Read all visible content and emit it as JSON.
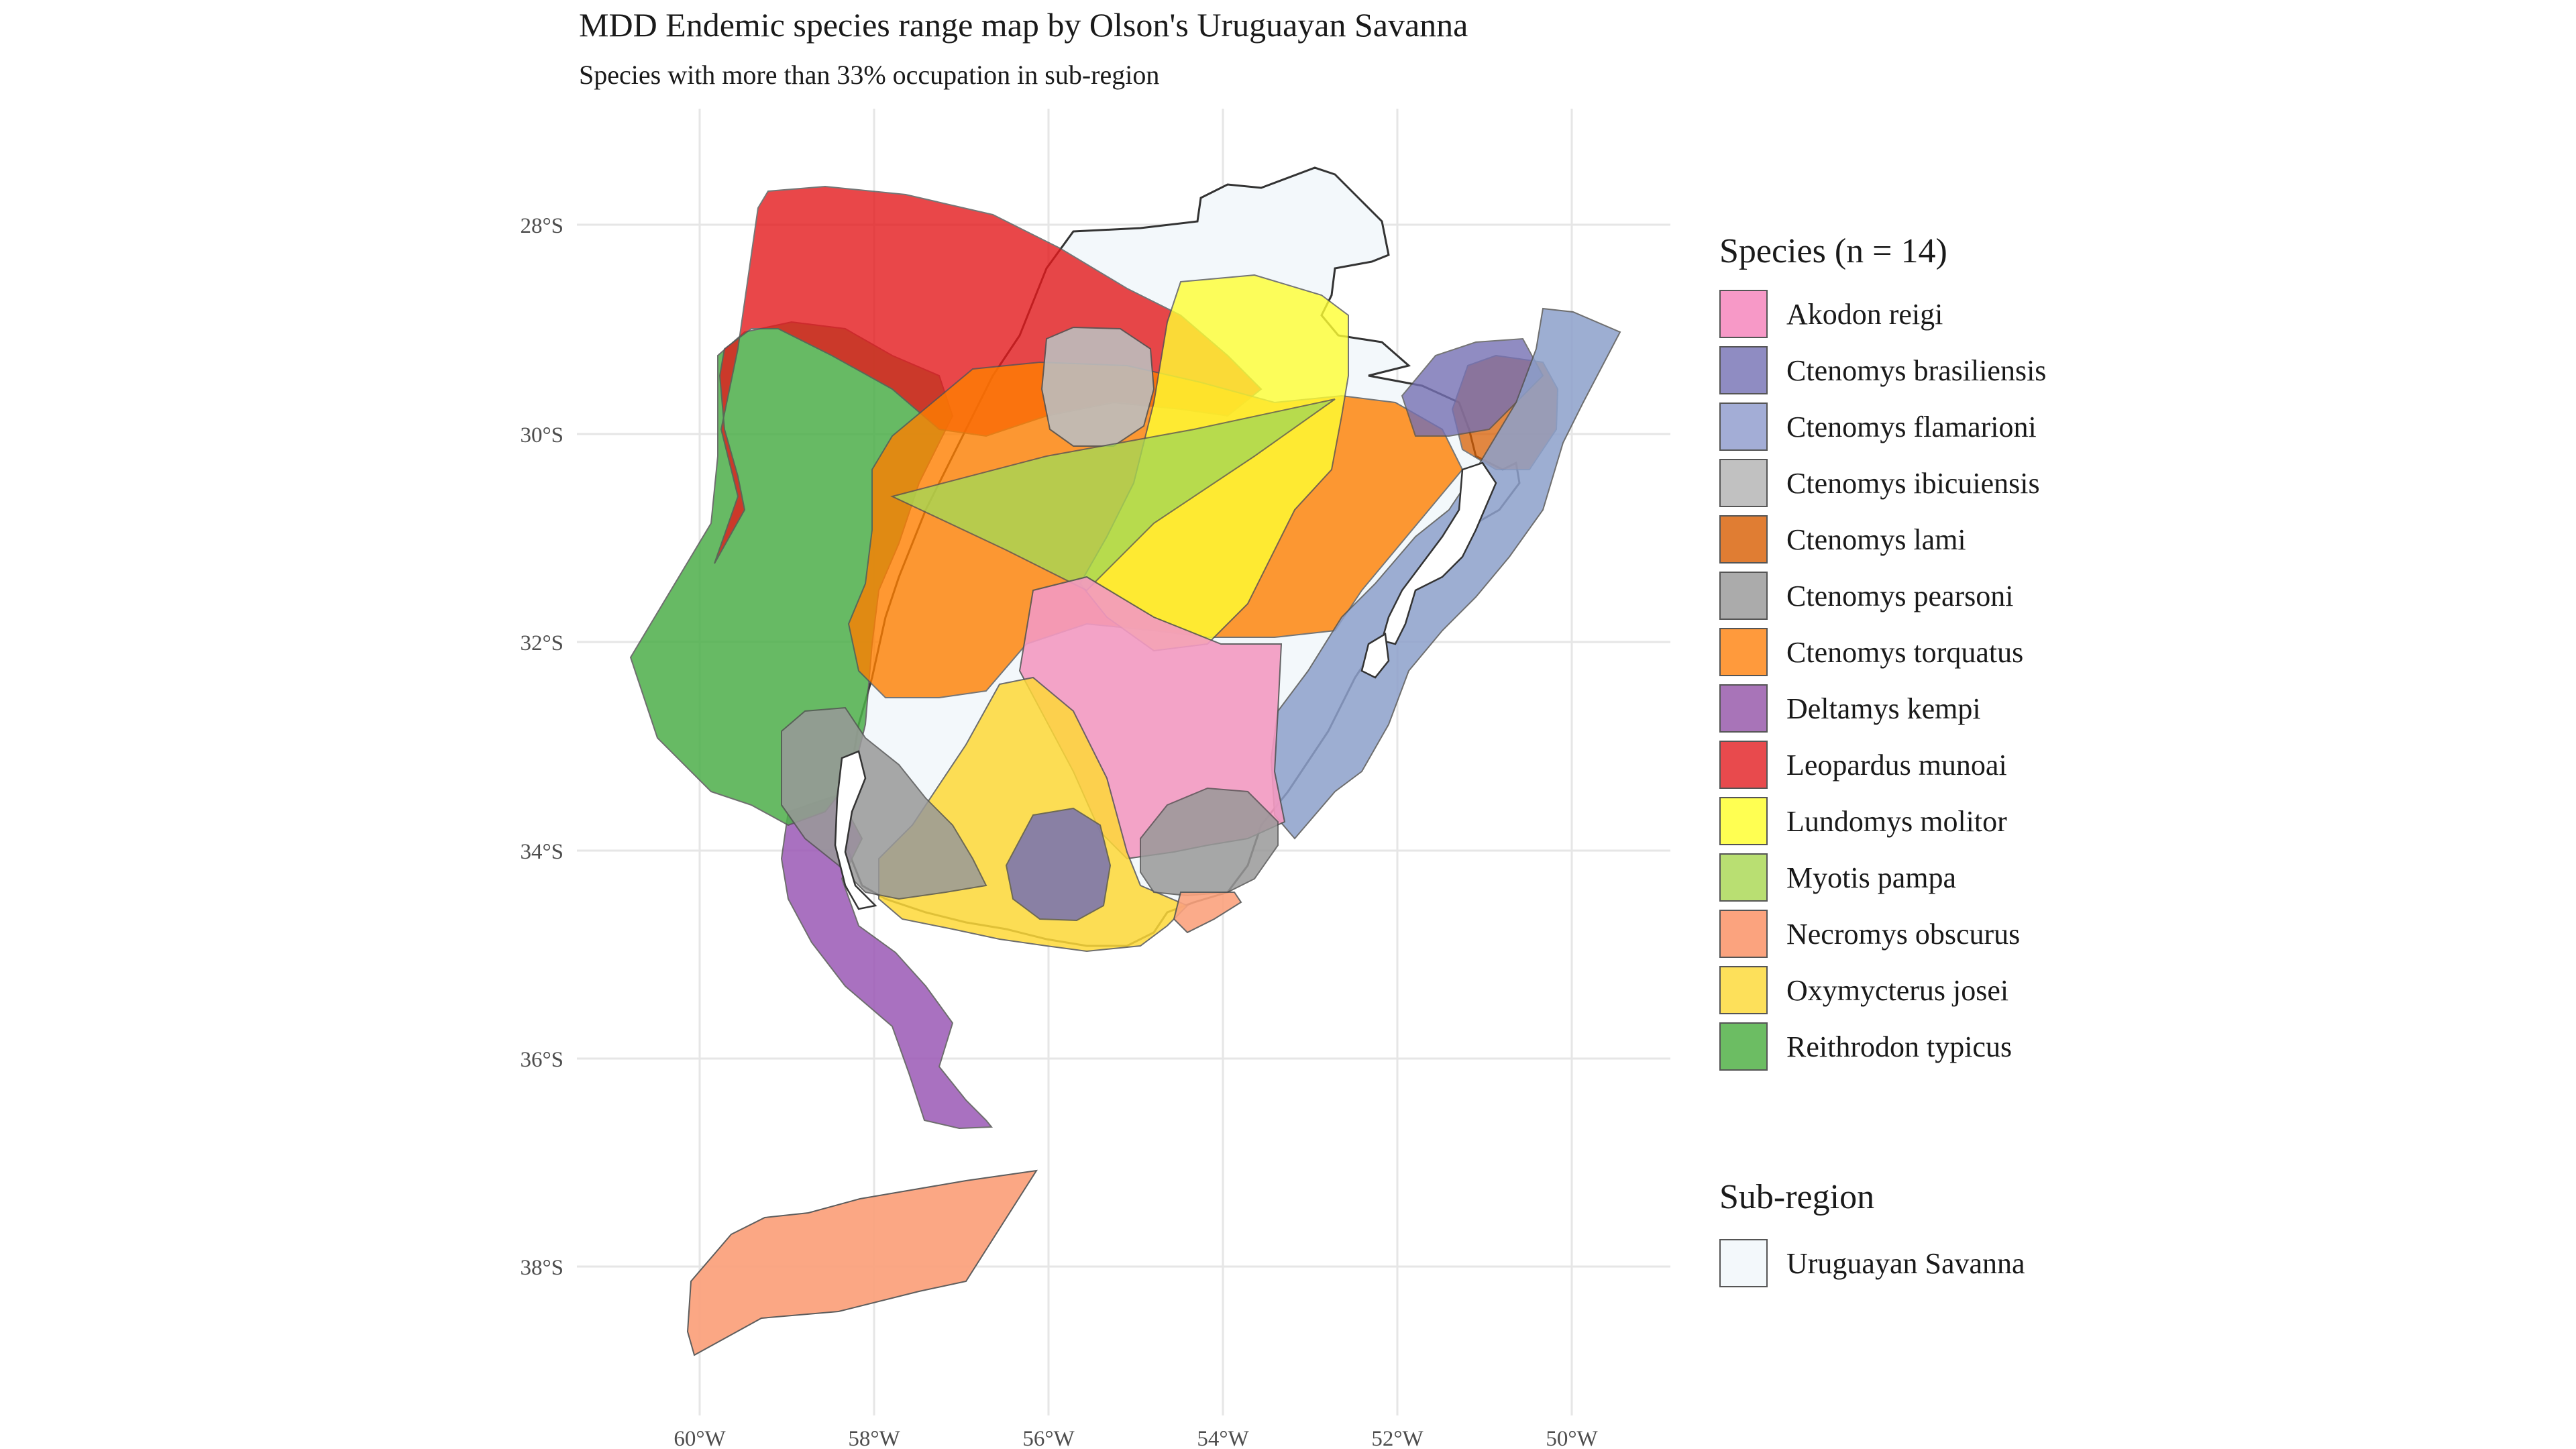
{
  "title": "MDD Endemic species range map by Olson's Uruguayan Savanna",
  "subtitle": "Species with more than 33% occupation in sub-region",
  "axes": {
    "lon_labels": [
      "60°W",
      "58°W",
      "56°W",
      "54°W",
      "52°W",
      "50°W"
    ],
    "lat_labels": [
      "28°S",
      "30°S",
      "32°S",
      "34°S",
      "36°S",
      "38°S"
    ]
  },
  "legend_species": {
    "title": "Species (n = 14)",
    "items": [
      {
        "label": "Akodon reigi",
        "color": "#F799C7"
      },
      {
        "label": "Ctenomys brasiliensis",
        "color": "#8F8CC2"
      },
      {
        "label": "Ctenomys flamarioni",
        "color": "#A3ADD6"
      },
      {
        "label": "Ctenomys ibicuiensis",
        "color": "#C1C1C1"
      },
      {
        "label": "Ctenomys lami",
        "color": "#E07D33"
      },
      {
        "label": "Ctenomys pearsoni",
        "color": "#ABABAB"
      },
      {
        "label": "Ctenomys torquatus",
        "color": "#FF9A3C"
      },
      {
        "label": "Deltamys kempi",
        "color": "#A874B8"
      },
      {
        "label": "Leopardus munoai",
        "color": "#E84A4D"
      },
      {
        "label": "Lundomys molitor",
        "color": "#FFFF52"
      },
      {
        "label": "Myotis pampa",
        "color": "#B9DF72"
      },
      {
        "label": "Necromys obscurus",
        "color": "#FBA37E"
      },
      {
        "label": "Oxymycterus josei",
        "color": "#FDE05A"
      },
      {
        "label": "Reithrodon typicus",
        "color": "#6CBD63"
      }
    ]
  },
  "legend_region": {
    "title": "Sub-region",
    "items": [
      {
        "label": "Uruguayan Savanna",
        "color": "#F3F8FB"
      }
    ]
  }
}
